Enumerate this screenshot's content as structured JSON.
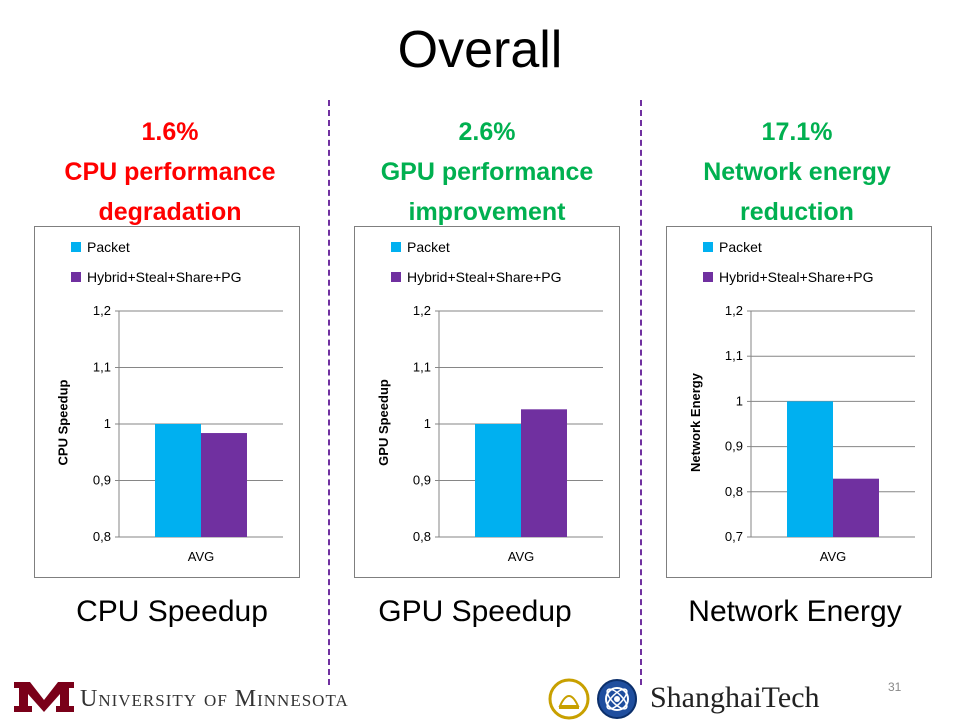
{
  "title": "Overall",
  "page_number": "31",
  "footer": {
    "left_logo_text": "University of Minnesota",
    "right_logo_text": "ShanghaiTech"
  },
  "colors": {
    "packet": "#00b0f0",
    "hybrid": "#7030a0",
    "red": "#ff0000",
    "green": "#00b050",
    "divider": "#7030a0",
    "umn_maroon": "#7a0019"
  },
  "panels": [
    {
      "pct": "1.6%",
      "desc": "CPU performance degradation",
      "color": "#ff0000",
      "caption": "CPU Speedup"
    },
    {
      "pct": "2.6%",
      "desc": "GPU performance improvement",
      "color": "#00b050",
      "caption": "GPU Speedup"
    },
    {
      "pct": "17.1%",
      "desc": "Network energy reduction",
      "color": "#00b050",
      "caption": "Network Energy"
    }
  ],
  "chart_data": [
    {
      "type": "bar",
      "categories": [
        "AVG"
      ],
      "series": [
        {
          "name": "Packet",
          "values": [
            1.0
          ]
        },
        {
          "name": "Hybrid+Steal+Share+PG",
          "values": [
            0.984
          ]
        }
      ],
      "ylabel": "CPU Speedup",
      "ylim": [
        0.8,
        1.2
      ],
      "yticks": [
        "0,8",
        "0,9",
        "1",
        "1,1",
        "1,2"
      ],
      "grid": true,
      "legend_position": "top"
    },
    {
      "type": "bar",
      "categories": [
        "AVG"
      ],
      "series": [
        {
          "name": "Packet",
          "values": [
            1.0
          ]
        },
        {
          "name": "Hybrid+Steal+Share+PG",
          "values": [
            1.026
          ]
        }
      ],
      "ylabel": "GPU Speedup",
      "ylim": [
        0.8,
        1.2
      ],
      "yticks": [
        "0,8",
        "0,9",
        "1",
        "1,1",
        "1,2"
      ],
      "grid": true,
      "legend_position": "top"
    },
    {
      "type": "bar",
      "categories": [
        "AVG"
      ],
      "series": [
        {
          "name": "Packet",
          "values": [
            1.0
          ]
        },
        {
          "name": "Hybrid+Steal+Share+PG",
          "values": [
            0.829
          ]
        }
      ],
      "ylabel": "Network Energy",
      "ylim": [
        0.7,
        1.2
      ],
      "yticks": [
        "0,7",
        "0,8",
        "0,9",
        "1",
        "1,1",
        "1,2"
      ],
      "grid": true,
      "legend_position": "top"
    }
  ]
}
